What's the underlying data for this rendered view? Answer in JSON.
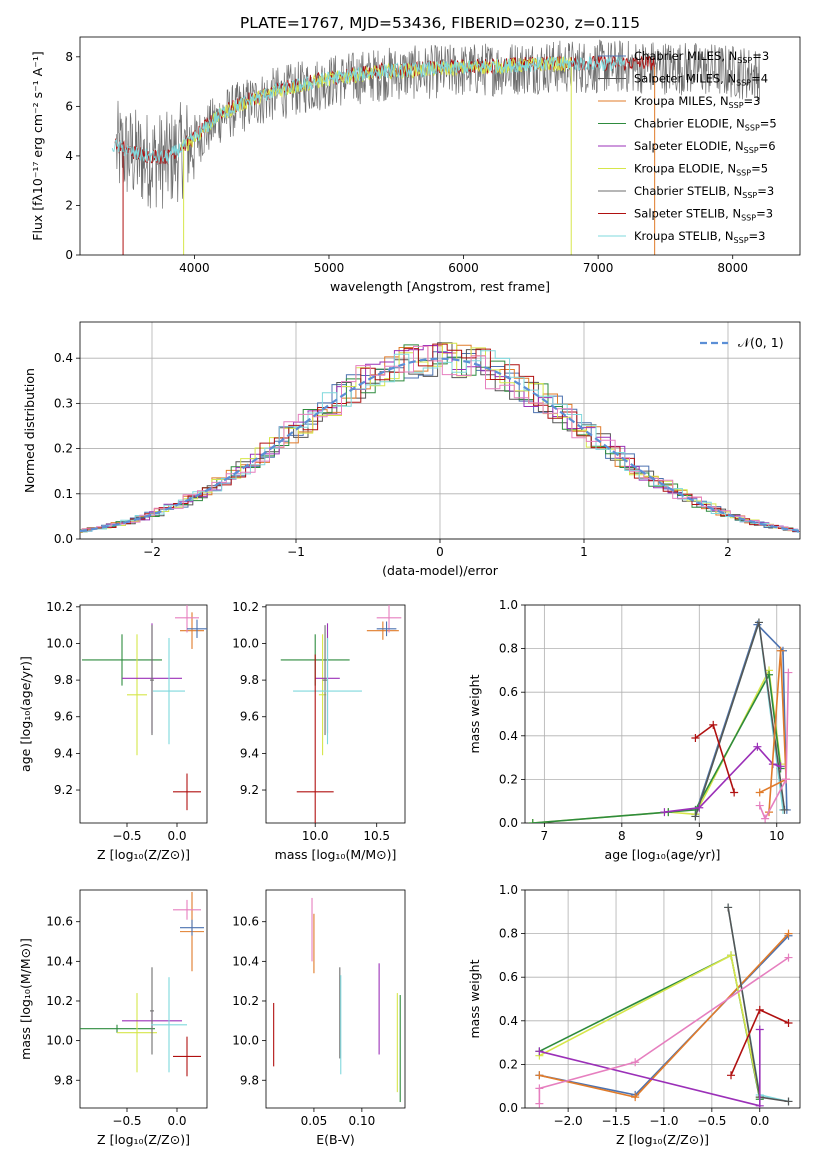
{
  "figure_title": "PLATE=1767, MJD=53436, FIBERID=0230, z=0.115",
  "colors": {
    "Chabrier MILES": "#4c72b0",
    "Salpeter MILES": "#555555",
    "Kroupa MILES": "#e07b2a",
    "Chabrier ELODIE": "#2e8b3e",
    "Salpeter ELODIE": "#9b30b8",
    "Kroupa ELODIE": "#d6e64a",
    "Chabrier STELIB": "#6e6e6e",
    "Salpeter STELIB": "#b01010",
    "Kroupa STELIB": "#7fd8dc",
    "gauss": "#5b8fd6",
    "pink": "#e67fbf",
    "orange": "#e8762b",
    "grid": "#b0b0b0"
  },
  "chart_data": [
    {
      "type": "line",
      "title": "PLATE=1767, MJD=53436, FIBERID=0230, z=0.115",
      "xlabel": "wavelength [Angstrom, rest frame]",
      "ylabel": "Flux [fλ10⁻¹⁷ erg cm⁻² s⁻¹ A⁻¹]",
      "xlim": [
        3150,
        8500
      ],
      "ylim": [
        0,
        8.8
      ],
      "xticks": [
        4000,
        5000,
        6000,
        7000,
        8000
      ],
      "yticks": [
        0,
        2,
        4,
        6,
        8
      ],
      "grid": false,
      "legend_placement": "right",
      "legend": [
        {
          "label": "Chabrier MILES, N",
          "sub": "SSP",
          "suffix": "=3"
        },
        {
          "label": "Salpeter MILES, N",
          "sub": "SSP",
          "suffix": "=4"
        },
        {
          "label": "Kroupa MILES, N",
          "sub": "SSP",
          "suffix": "=3"
        },
        {
          "label": "Chabrier ELODIE, N",
          "sub": "SSP",
          "suffix": "=5"
        },
        {
          "label": "Salpeter ELODIE, N",
          "sub": "SSP",
          "suffix": "=6"
        },
        {
          "label": "Kroupa ELODIE, N",
          "sub": "SSP",
          "suffix": "=5"
        },
        {
          "label": "Chabrier STELIB, N",
          "sub": "SSP",
          "suffix": "=3"
        },
        {
          "label": "Salpeter STELIB, N",
          "sub": "SSP",
          "suffix": "=3"
        },
        {
          "label": "Kroupa STELIB, N",
          "sub": "SSP",
          "suffix": "=3"
        }
      ],
      "data_envelope": {
        "x": [
          3400,
          3600,
          3800,
          4000,
          4200,
          4400,
          4600,
          5000,
          5400,
          5800,
          6200,
          6600,
          7000,
          7400,
          7800,
          8200
        ],
        "y": [
          4.3,
          3.9,
          3.8,
          4.6,
          5.6,
          6.1,
          6.5,
          7.0,
          7.3,
          7.4,
          7.5,
          7.6,
          7.6,
          7.6,
          7.5,
          7.3
        ]
      }
    },
    {
      "type": "line",
      "xlabel": "(data-model)/error",
      "ylabel": "Normed distribution",
      "xlim": [
        -2.5,
        2.5
      ],
      "ylim": [
        0,
        0.48
      ],
      "xticks": [
        -2,
        -1,
        0,
        1,
        2
      ],
      "yticks": [
        0.0,
        0.1,
        0.2,
        0.3,
        0.4
      ],
      "grid": true,
      "legend_placement": "top-right",
      "legend_label": "𝒩(0, 1)",
      "gaussian": {
        "mean": 0,
        "sigma": 1
      }
    },
    {
      "type": "scatter",
      "panel": "age-vs-Z",
      "xlabel": "Z [log₁₀(Z/Z⊙)]",
      "ylabel": "age  [log₁₀(age/yr)]",
      "xlim": [
        -0.97,
        0.3
      ],
      "ylim": [
        9.02,
        10.21
      ],
      "xticks": [
        -0.5,
        0.0
      ],
      "yticks": [
        9.2,
        9.4,
        9.6,
        9.8,
        10.0,
        10.2
      ],
      "points": [
        {
          "series": "Chabrier ELODIE",
          "x": -0.55,
          "xerr": 0.4,
          "y": 9.91,
          "yerr": 0.14
        },
        {
          "series": "Kroupa ELODIE",
          "x": -0.4,
          "xerr": 0.1,
          "y": 9.72,
          "yerr": 0.33
        },
        {
          "series": "Salpeter ELODIE",
          "x": -0.25,
          "xerr": 0.3,
          "y": 9.81,
          "yerr": 0.3
        },
        {
          "series": "Chabrier STELIB",
          "x": -0.25,
          "xerr": 0.02,
          "y": 9.8,
          "yerr": 0.3
        },
        {
          "series": "Kroupa STELIB",
          "x": -0.08,
          "xerr": 0.16,
          "y": 9.74,
          "yerr": 0.29
        },
        {
          "series": "Salpeter STELIB",
          "x": 0.1,
          "xerr": 0.14,
          "y": 9.19,
          "yerr": 0.1
        },
        {
          "series": "Kroupa MILES",
          "x": 0.15,
          "xerr": 0.12,
          "y": 10.07,
          "yerr": 0.1
        },
        {
          "series": "Pink",
          "x": 0.1,
          "xerr": 0.12,
          "y": 10.14,
          "yerr": 0.08
        },
        {
          "series": "Chabrier MILES",
          "x": 0.2,
          "xerr": 0.1,
          "y": 10.08,
          "yerr": 0.05
        }
      ]
    },
    {
      "type": "scatter",
      "panel": "age-vs-mass",
      "xlabel": "mass [log₁₀(M/M⊙)]",
      "ylabel": "",
      "xlim": [
        9.6,
        10.73
      ],
      "ylim": [
        9.02,
        10.21
      ],
      "xticks": [
        10.0,
        10.5
      ],
      "yticks": [
        9.2,
        9.4,
        9.6,
        9.8,
        10.0,
        10.2
      ],
      "points": [
        {
          "series": "Chabrier ELODIE",
          "x": 10.0,
          "xerr": 0.28,
          "y": 9.91,
          "yerr": 0.14
        },
        {
          "series": "Kroupa ELODIE",
          "x": 10.06,
          "xerr": 0.03,
          "y": 9.72,
          "yerr": 0.33
        },
        {
          "series": "Salpeter ELODIE",
          "x": 10.1,
          "xerr": 0.1,
          "y": 9.81,
          "yerr": 0.3
        },
        {
          "series": "Chabrier STELIB",
          "x": 10.08,
          "xerr": 0.02,
          "y": 9.8,
          "yerr": 0.3
        },
        {
          "series": "Kroupa STELIB",
          "x": 10.1,
          "xerr": 0.28,
          "y": 9.74,
          "yerr": 0.29
        },
        {
          "series": "Salpeter STELIB",
          "x": 10.0,
          "xerr": 0.15,
          "y": 9.19,
          "yerr": 0.75
        },
        {
          "series": "Kroupa MILES",
          "x": 10.55,
          "xerr": 0.13,
          "y": 10.07,
          "yerr": 0.05
        },
        {
          "series": "Pink",
          "x": 10.6,
          "xerr": 0.1,
          "y": 10.14,
          "yerr": 0.08
        },
        {
          "series": "Chabrier MILES",
          "x": 10.58,
          "xerr": 0.08,
          "y": 10.08,
          "yerr": 0.04
        }
      ]
    },
    {
      "type": "line",
      "panel": "mass-weight-vs-age",
      "xlabel": "age  [log₁₀(age/yr)]",
      "ylabel": "mass weight",
      "xlim": [
        6.75,
        10.3
      ],
      "ylim": [
        0,
        1.0
      ],
      "xticks": [
        7,
        8,
        9,
        10
      ],
      "yticks": [
        0.0,
        0.2,
        0.4,
        0.6,
        0.8,
        1.0
      ],
      "grid": true,
      "series": [
        {
          "name": "Chabrier MILES",
          "x": [
            8.95,
            9.75,
            10.08,
            10.13
          ],
          "y": [
            0.04,
            0.91,
            0.79,
            0.06
          ]
        },
        {
          "name": "Kroupa ELODIE",
          "x": [
            6.85,
            8.6,
            8.95,
            9.9,
            10.05
          ],
          "y": [
            0.0,
            0.05,
            0.04,
            0.7,
            0.27
          ]
        },
        {
          "name": "Chabrier ELODIE",
          "x": [
            6.85,
            8.6,
            8.95,
            9.9,
            10.05
          ],
          "y": [
            0.0,
            0.05,
            0.06,
            0.68,
            0.25
          ]
        },
        {
          "name": "Kroupa STELIB",
          "x": [
            8.95,
            9.77,
            10.08
          ],
          "y": [
            0.03,
            0.92,
            0.06
          ]
        },
        {
          "name": "Salpeter MILES",
          "x": [
            8.95,
            9.77,
            10.1
          ],
          "y": [
            0.03,
            0.92,
            0.06
          ]
        },
        {
          "name": "Salpeter ELODIE",
          "x": [
            8.55,
            9.0,
            9.75,
            9.95,
            10.05
          ],
          "y": [
            0.05,
            0.07,
            0.35,
            0.27,
            0.26
          ]
        },
        {
          "name": "Kroupa MILES",
          "x": [
            9.9,
            10.05,
            10.12,
            9.78
          ],
          "y": [
            0.05,
            0.79,
            0.2,
            0.14
          ]
        },
        {
          "name": "Pink",
          "x": [
            9.78,
            9.85,
            10.12,
            10.15
          ],
          "y": [
            0.08,
            0.02,
            0.2,
            0.69
          ]
        },
        {
          "name": "Salpeter STELIB",
          "x": [
            8.95,
            9.18,
            9.45
          ],
          "y": [
            0.39,
            0.45,
            0.14
          ]
        }
      ]
    },
    {
      "type": "scatter",
      "panel": "mass-vs-Z",
      "xlabel": "Z [log₁₀(Z/Z⊙)]",
      "ylabel": "mass [log₁₀(M/M⊙)]",
      "xlim": [
        -0.97,
        0.3
      ],
      "ylim": [
        9.66,
        10.76
      ],
      "xticks": [
        -0.5,
        0.0
      ],
      "yticks": [
        9.8,
        10.0,
        10.2,
        10.4,
        10.6
      ],
      "points": [
        {
          "series": "Chabrier ELODIE",
          "x": -0.6,
          "xerr": 0.38,
          "y": 10.06,
          "yerr": 0.02
        },
        {
          "series": "Kroupa ELODIE",
          "x": -0.4,
          "xerr": 0.2,
          "y": 10.04,
          "yerr": 0.2
        },
        {
          "series": "Salpeter ELODIE",
          "x": -0.25,
          "xerr": 0.3,
          "y": 10.1,
          "yerr": 0.05
        },
        {
          "series": "Chabrier STELIB",
          "x": -0.25,
          "xerr": 0.02,
          "y": 10.15,
          "yerr": 0.22
        },
        {
          "series": "Kroupa STELIB",
          "x": -0.08,
          "xerr": 0.18,
          "y": 10.08,
          "yerr": 0.24
        },
        {
          "series": "Salpeter STELIB",
          "x": 0.1,
          "xerr": 0.14,
          "y": 9.92,
          "yerr": 0.1
        },
        {
          "series": "Kroupa MILES",
          "x": 0.15,
          "xerr": 0.12,
          "y": 10.55,
          "yerr": 0.2
        },
        {
          "series": "Pink",
          "x": 0.1,
          "xerr": 0.14,
          "y": 10.66,
          "yerr": 0.05
        },
        {
          "series": "Chabrier MILES",
          "x": 0.15,
          "xerr": 0.12,
          "y": 10.57,
          "yerr": 0.04
        }
      ]
    },
    {
      "type": "scatter",
      "panel": "mass-vs-ebv",
      "xlabel": "E(B-V)",
      "ylabel": "",
      "xlim": [
        0.0,
        0.145
      ],
      "ylim": [
        9.66,
        10.76
      ],
      "xticks": [
        0.05,
        0.1
      ],
      "yticks": [
        9.8,
        10.0,
        10.2,
        10.4,
        10.6
      ],
      "points": [
        {
          "series": "Salpeter STELIB",
          "x": 0.008,
          "y": 10.03,
          "yerr": 0.16
        },
        {
          "series": "Pink",
          "x": 0.048,
          "y": 10.56,
          "yerr": 0.16
        },
        {
          "series": "Kroupa MILES",
          "x": 0.05,
          "y": 10.49,
          "yerr": 0.15
        },
        {
          "series": "Chabrier STELIB",
          "x": 0.077,
          "y": 10.14,
          "yerr": 0.23
        },
        {
          "series": "Kroupa STELIB",
          "x": 0.078,
          "y": 10.08,
          "yerr": 0.25
        },
        {
          "series": "Salpeter ELODIE",
          "x": 0.118,
          "y": 10.16,
          "yerr": 0.23
        },
        {
          "series": "Kroupa ELODIE",
          "x": 0.137,
          "y": 9.99,
          "yerr": 0.25
        },
        {
          "series": "Chabrier ELODIE",
          "x": 0.14,
          "y": 9.96,
          "yerr": 0.27
        }
      ]
    },
    {
      "type": "line",
      "panel": "mass-weight-vs-Z",
      "xlabel": "Z [log₁₀(Z/Z⊙)]",
      "ylabel": "mass weight",
      "xlim": [
        -2.45,
        0.42
      ],
      "ylim": [
        0,
        1.0
      ],
      "xticks": [
        -2.0,
        -1.5,
        -1.0,
        -0.5,
        0.0
      ],
      "yticks": [
        0.0,
        0.2,
        0.4,
        0.6,
        0.8,
        1.0
      ],
      "grid": true,
      "series": [
        {
          "name": "Chabrier MILES",
          "x": [
            -2.3,
            -1.3,
            0.3
          ],
          "y": [
            0.15,
            0.06,
            0.79
          ]
        },
        {
          "name": "Kroupa MILES",
          "x": [
            -2.3,
            -1.3,
            0.3
          ],
          "y": [
            0.15,
            0.05,
            0.8
          ]
        },
        {
          "name": "Chabrier ELODIE",
          "x": [
            -2.3,
            -0.3,
            0.0
          ],
          "y": [
            0.26,
            0.7,
            0.04
          ]
        },
        {
          "name": "Kroupa ELODIE",
          "x": [
            -2.3,
            -0.3,
            0.0
          ],
          "y": [
            0.24,
            0.7,
            0.05
          ]
        },
        {
          "name": "Kroupa STELIB",
          "x": [
            -0.33,
            0.0,
            0.3
          ],
          "y": [
            0.92,
            0.06,
            0.03
          ]
        },
        {
          "name": "Salpeter MILES",
          "x": [
            -0.33,
            0.0,
            0.3
          ],
          "y": [
            0.92,
            0.05,
            0.03
          ]
        },
        {
          "name": "Salpeter ELODIE",
          "x": [
            -2.3,
            0.0,
            0.0
          ],
          "y": [
            0.26,
            0.01,
            0.36
          ]
        },
        {
          "name": "Pink",
          "x": [
            -2.3,
            -2.3,
            -1.3,
            0.3
          ],
          "y": [
            0.02,
            0.09,
            0.21,
            0.69
          ]
        },
        {
          "name": "Salpeter STELIB",
          "x": [
            -0.3,
            0.0,
            0.3
          ],
          "y": [
            0.15,
            0.45,
            0.39
          ]
        }
      ]
    }
  ]
}
